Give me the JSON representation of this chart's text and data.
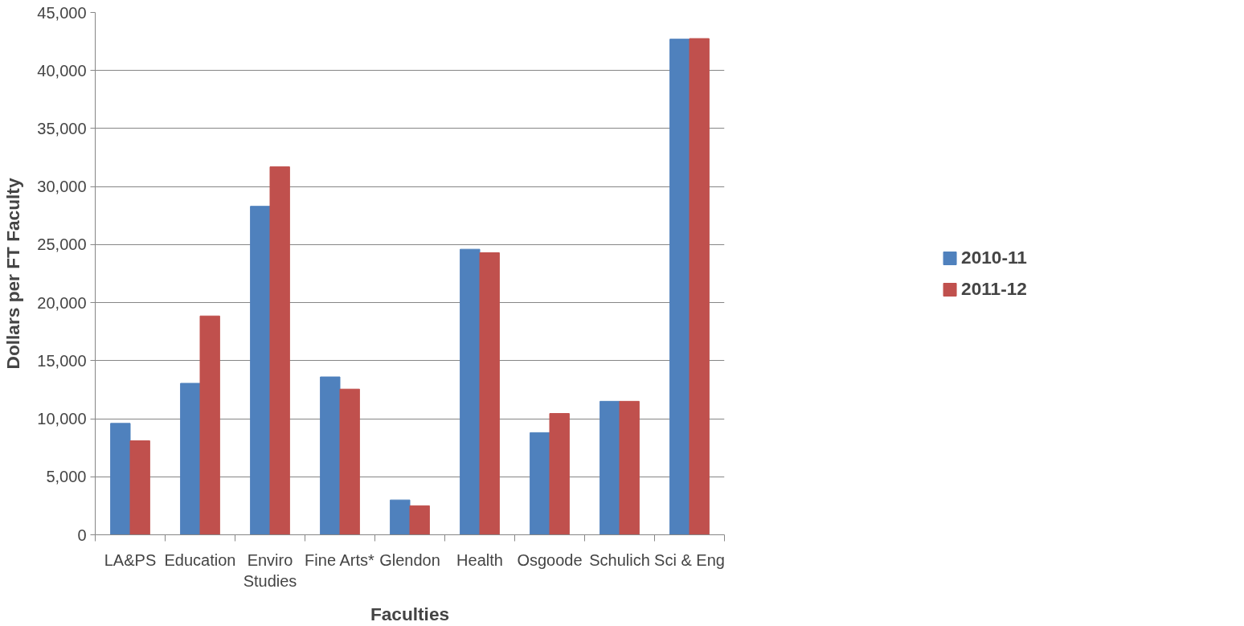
{
  "chart_data": {
    "type": "bar",
    "xlabel": "Faculties",
    "ylabel": "Dollars per FT Faculty",
    "categories": [
      "LA&PS",
      "Education",
      "Enviro Studies",
      "Fine Arts*",
      "Glendon",
      "Health",
      "Osgoode",
      "Schulich",
      "Sci & Eng"
    ],
    "series": [
      {
        "name": "2010-11",
        "color": "#4f81bd",
        "values": [
          9600,
          13050,
          28300,
          13600,
          3000,
          24600,
          8800,
          11500,
          42700
        ]
      },
      {
        "name": "2011-12",
        "color": "#c0504d",
        "values": [
          8100,
          18850,
          31700,
          12550,
          2500,
          24300,
          10450,
          11500,
          42750
        ]
      }
    ],
    "ylim": [
      0,
      45000
    ],
    "yticks": [
      {
        "value": 0,
        "label": "0"
      },
      {
        "value": 5000,
        "label": "5,000"
      },
      {
        "value": 10000,
        "label": "10,000"
      },
      {
        "value": 15000,
        "label": "15,000"
      },
      {
        "value": 20000,
        "label": "20,000"
      },
      {
        "value": 25000,
        "label": "25,000"
      },
      {
        "value": 30000,
        "label": "30,000"
      },
      {
        "value": 35000,
        "label": "35,000"
      },
      {
        "value": 40000,
        "label": "40,000"
      },
      {
        "value": 45000,
        "label": "45,000"
      }
    ],
    "grid": "y",
    "legend": "right"
  }
}
